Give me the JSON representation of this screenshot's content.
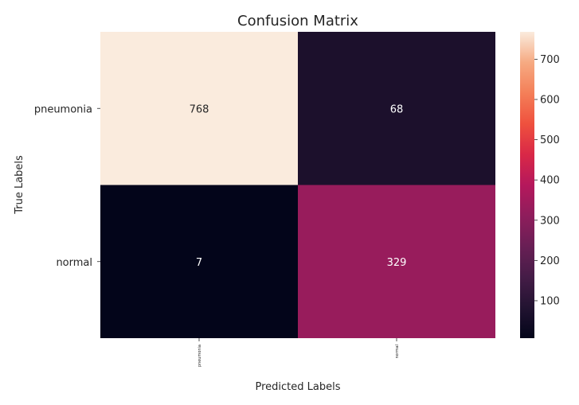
{
  "chart_data": {
    "type": "heatmap",
    "title": "Confusion Matrix",
    "xlabel": "Predicted Labels",
    "ylabel": "True Labels",
    "x_categories": [
      "pneumonia",
      "normal"
    ],
    "y_categories": [
      "pneumonia",
      "normal"
    ],
    "values": [
      [
        768,
        68
      ],
      [
        7,
        329
      ]
    ],
    "colormap": "rocket",
    "colorbar": {
      "min": 7,
      "max": 768,
      "ticks": [
        100,
        200,
        300,
        400,
        500,
        600,
        700
      ]
    },
    "colors": {
      "low": "#03051a",
      "high": "#faebdd",
      "annotation_dark": "#262626",
      "annotation_light": "#ffffff"
    }
  }
}
